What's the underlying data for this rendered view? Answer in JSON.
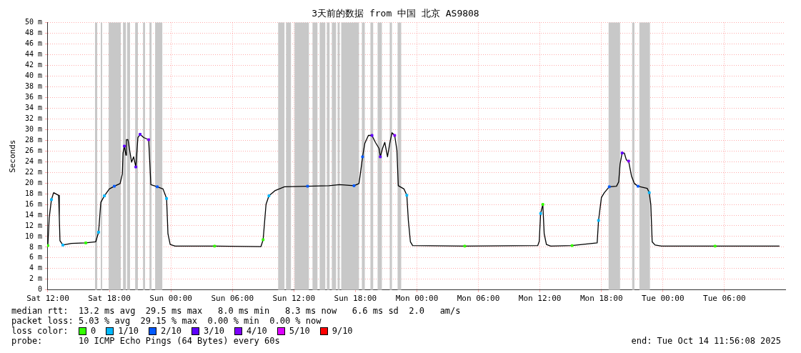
{
  "chart_data": {
    "type": "line",
    "title": "3天前的数据 from 中国 北京 AS9808",
    "ylabel": "Seconds",
    "legend_title": "loss color:",
    "legend": "bottom",
    "grid": true,
    "xlim": [
      "2025-10-11T11:56",
      "2025-10-14T11:56"
    ],
    "xticks": [
      {
        "value": "2025-10-11T12:00",
        "label": "Sat 12:00"
      },
      {
        "value": "2025-10-11T18:00",
        "label": "Sat 18:00"
      },
      {
        "value": "2025-10-12T00:00",
        "label": "Sun 00:00"
      },
      {
        "value": "2025-10-12T06:00",
        "label": "Sun 06:00"
      },
      {
        "value": "2025-10-12T12:00",
        "label": "Sun 12:00"
      },
      {
        "value": "2025-10-12T18:00",
        "label": "Sun 18:00"
      },
      {
        "value": "2025-10-13T00:00",
        "label": "Mon 00:00"
      },
      {
        "value": "2025-10-13T06:00",
        "label": "Mon 06:00"
      },
      {
        "value": "2025-10-13T12:00",
        "label": "Mon 12:00"
      },
      {
        "value": "2025-10-13T18:00",
        "label": "Mon 18:00"
      },
      {
        "value": "2025-10-14T00:00",
        "label": "Tue 00:00"
      },
      {
        "value": "2025-10-14T06:00",
        "label": "Tue 06:00"
      }
    ],
    "ylim": [
      0,
      50
    ],
    "yticks": [
      0,
      {
        "value": 2,
        "label": "2 m"
      },
      {
        "value": 4,
        "label": "4 m"
      },
      {
        "value": 6,
        "label": "6 m"
      },
      {
        "value": 8,
        "label": "8 m"
      },
      {
        "value": 10,
        "label": "10 m"
      },
      {
        "value": 12,
        "label": "12 m"
      },
      {
        "value": 14,
        "label": "14 m"
      },
      {
        "value": 16,
        "label": "16 m"
      },
      {
        "value": 18,
        "label": "18 m"
      },
      {
        "value": 20,
        "label": "20 m"
      },
      {
        "value": 22,
        "label": "22 m"
      },
      {
        "value": 24,
        "label": "24 m"
      },
      {
        "value": 26,
        "label": "26 m"
      },
      {
        "value": 28,
        "label": "28 m"
      },
      {
        "value": 30,
        "label": "30 m"
      },
      {
        "value": 32,
        "label": "32 m"
      },
      {
        "value": 34,
        "label": "34 m"
      },
      {
        "value": 36,
        "label": "36 m"
      },
      {
        "value": 38,
        "label": "38 m"
      },
      {
        "value": 40,
        "label": "40 m"
      },
      {
        "value": 42,
        "label": "42 m"
      },
      {
        "value": 44,
        "label": "44 m"
      },
      {
        "value": 46,
        "label": "46 m"
      },
      {
        "value": 48,
        "label": "48 m"
      },
      {
        "value": 50,
        "label": "50 m"
      }
    ],
    "bands": [
      {
        "axis": "x",
        "from": "2025-10-11T16:36",
        "to": "2025-10-11T16:49",
        "color": "#c8c8c8"
      },
      {
        "axis": "x",
        "from": "2025-10-11T17:10",
        "to": "2025-10-11T17:18",
        "color": "#c8c8c8"
      },
      {
        "axis": "x",
        "from": "2025-10-11T17:56",
        "to": "2025-10-11T19:07",
        "color": "#c8c8c8"
      },
      {
        "axis": "x",
        "from": "2025-10-11T19:20",
        "to": "2025-10-11T19:37",
        "color": "#c8c8c8"
      },
      {
        "axis": "x",
        "from": "2025-10-11T19:44",
        "to": "2025-10-11T20:01",
        "color": "#c8c8c8"
      },
      {
        "axis": "x",
        "from": "2025-10-11T20:31",
        "to": "2025-10-11T20:47",
        "color": "#c8c8c8"
      },
      {
        "axis": "x",
        "from": "2025-10-11T21:17",
        "to": "2025-10-11T21:29",
        "color": "#c8c8c8"
      },
      {
        "axis": "x",
        "from": "2025-10-11T21:55",
        "to": "2025-10-11T22:07",
        "color": "#c8c8c8"
      },
      {
        "axis": "x",
        "from": "2025-10-11T22:28",
        "to": "2025-10-11T23:10",
        "color": "#c8c8c8"
      },
      {
        "axis": "x",
        "from": "2025-10-12T10:28",
        "to": "2025-10-12T11:05",
        "color": "#c8c8c8"
      },
      {
        "axis": "x",
        "from": "2025-10-12T11:14",
        "to": "2025-10-12T11:43",
        "color": "#c8c8c8"
      },
      {
        "axis": "x",
        "from": "2025-10-12T12:04",
        "to": "2025-10-12T13:28",
        "color": "#c8c8c8"
      },
      {
        "axis": "x",
        "from": "2025-10-12T13:49",
        "to": "2025-10-12T14:18",
        "color": "#c8c8c8"
      },
      {
        "axis": "x",
        "from": "2025-10-12T14:31",
        "to": "2025-10-12T15:04",
        "color": "#c8c8c8"
      },
      {
        "axis": "x",
        "from": "2025-10-12T15:13",
        "to": "2025-10-12T15:29",
        "color": "#c8c8c8"
      },
      {
        "axis": "x",
        "from": "2025-10-12T15:42",
        "to": "2025-10-12T16:07",
        "color": "#c8c8c8"
      },
      {
        "axis": "x",
        "from": "2025-10-12T16:16",
        "to": "2025-10-12T16:28",
        "color": "#c8c8c8"
      },
      {
        "axis": "x",
        "from": "2025-10-12T16:37",
        "to": "2025-10-12T18:21",
        "color": "#c8c8c8"
      },
      {
        "axis": "x",
        "from": "2025-10-12T18:38",
        "to": "2025-10-12T18:55",
        "color": "#c8c8c8"
      },
      {
        "axis": "x",
        "from": "2025-10-12T19:28",
        "to": "2025-10-12T19:44",
        "color": "#c8c8c8"
      },
      {
        "axis": "x",
        "from": "2025-10-12T20:10",
        "to": "2025-10-12T20:35",
        "color": "#c8c8c8"
      },
      {
        "axis": "x",
        "from": "2025-10-12T21:21",
        "to": "2025-10-12T21:34",
        "color": "#c8c8c8"
      },
      {
        "axis": "x",
        "from": "2025-10-12T22:07",
        "to": "2025-10-12T22:28",
        "color": "#c8c8c8"
      },
      {
        "axis": "x",
        "from": "2025-10-13T18:42",
        "to": "2025-10-13T19:49",
        "color": "#c8c8c8"
      },
      {
        "axis": "x",
        "from": "2025-10-13T21:00",
        "to": "2025-10-13T21:13",
        "color": "#c8c8c8"
      },
      {
        "axis": "x",
        "from": "2025-10-13T21:42",
        "to": "2025-10-13T22:44",
        "color": "#c8c8c8"
      }
    ],
    "series": [
      {
        "color": "#000000",
        "x": [
          "2025-10-11T12:00",
          "2025-10-11T12:08",
          "2025-10-11T12:21",
          "2025-10-11T12:34",
          "2025-10-11T13:03",
          "2025-10-11T13:07",
          "2025-10-11T13:11",
          "2025-10-11T13:28",
          "2025-10-11T14:18",
          "2025-10-11T15:42",
          "2025-10-11T16:40",
          "2025-10-11T16:57",
          "2025-10-11T17:10",
          "2025-10-11T17:31",
          "2025-10-11T18:00",
          "2025-10-11T18:29",
          "2025-10-11T19:03",
          "2025-10-11T19:16",
          "2025-10-11T19:20",
          "2025-10-11T19:28",
          "2025-10-11T19:37",
          "2025-10-11T19:40",
          "2025-10-11T19:49",
          "2025-10-11T20:10",
          "2025-10-11T20:22",
          "2025-10-11T20:35",
          "2025-10-11T20:47",
          "2025-10-11T21:00",
          "2025-10-11T21:21",
          "2025-10-11T21:50",
          "2025-10-11T22:03",
          "2025-10-11T22:40",
          "2025-10-11T23:14",
          "2025-10-11T23:35",
          "2025-10-11T23:43",
          "2025-10-11T23:56",
          "2025-10-12T00:25",
          "2025-10-12T04:16",
          "2025-10-12T08:47",
          "2025-10-12T09:00",
          "2025-10-12T09:08",
          "2025-10-12T09:17",
          "2025-10-12T09:34",
          "2025-10-12T10:11",
          "2025-10-12T11:05",
          "2025-10-12T13:20",
          "2025-10-12T15:25",
          "2025-10-12T16:28",
          "2025-10-12T17:52",
          "2025-10-12T18:21",
          "2025-10-12T18:29",
          "2025-10-12T18:42",
          "2025-10-12T18:55",
          "2025-10-12T19:16",
          "2025-10-12T19:37",
          "2025-10-12T19:57",
          "2025-10-12T20:18",
          "2025-10-12T20:26",
          "2025-10-12T20:39",
          "2025-10-12T20:52",
          "2025-10-12T21:08",
          "2025-10-12T21:21",
          "2025-10-12T21:34",
          "2025-10-12T21:50",
          "2025-10-12T22:03",
          "2025-10-12T22:11",
          "2025-10-12T22:44",
          "2025-10-12T23:01",
          "2025-10-12T23:10",
          "2025-10-12T23:22",
          "2025-10-12T23:35",
          "2025-10-13T04:40",
          "2025-10-13T11:47",
          "2025-10-13T11:56",
          "2025-10-13T12:04",
          "2025-10-13T12:17",
          "2025-10-13T12:25",
          "2025-10-13T12:38",
          "2025-10-13T13:03",
          "2025-10-13T15:08",
          "2025-10-13T17:35",
          "2025-10-13T17:43",
          "2025-10-13T18:00",
          "2025-10-13T18:17",
          "2025-10-13T18:46",
          "2025-10-13T19:28",
          "2025-10-13T19:41",
          "2025-10-13T19:49",
          "2025-10-13T20:01",
          "2025-10-13T20:14",
          "2025-10-13T20:26",
          "2025-10-13T20:39",
          "2025-10-13T20:56",
          "2025-10-13T21:13",
          "2025-10-13T21:34",
          "2025-10-13T22:28",
          "2025-10-13T22:40",
          "2025-10-13T22:49",
          "2025-10-13T22:57",
          "2025-10-13T23:14",
          "2025-10-13T23:52",
          "2025-10-14T05:05",
          "2025-10-14T11:22"
        ],
        "values": [
          8.3,
          13.5,
          16.9,
          18.2,
          17.7,
          13.6,
          9.2,
          8.4,
          8.7,
          8.8,
          9.0,
          10.8,
          16.4,
          17.6,
          18.9,
          19.4,
          19.9,
          21.7,
          25.6,
          26.9,
          25.2,
          28.1,
          28.1,
          23.9,
          24.9,
          23.0,
          28.5,
          29.1,
          28.5,
          28.1,
          19.7,
          19.3,
          18.9,
          17.1,
          10.5,
          8.5,
          8.2,
          8.2,
          8.1,
          9.4,
          12.5,
          16.0,
          17.6,
          18.6,
          19.3,
          19.4,
          19.5,
          19.7,
          19.5,
          19.9,
          21.7,
          24.9,
          27.4,
          28.9,
          28.9,
          27.6,
          26.5,
          24.9,
          26.5,
          27.6,
          24.9,
          27.4,
          29.4,
          28.9,
          26.1,
          19.5,
          18.9,
          17.7,
          13.0,
          9.0,
          8.3,
          8.2,
          8.3,
          9.1,
          14.3,
          16.0,
          10.5,
          8.5,
          8.2,
          8.3,
          8.8,
          13.0,
          17.3,
          18.2,
          19.3,
          19.4,
          20.2,
          23.5,
          25.6,
          25.6,
          24.3,
          24.1,
          21.3,
          19.9,
          19.4,
          19.0,
          18.2,
          16.0,
          9.0,
          8.4,
          8.2,
          8.2,
          8.2
        ]
      },
      {
        "type": "scatter",
        "name": "0",
        "color": "#33ff00",
        "marker": "square",
        "x": [
          "2025-10-11T12:00",
          "2025-10-11T15:42",
          "2025-10-12T04:16",
          "2025-10-12T09:00",
          "2025-10-13T04:40",
          "2025-10-13T12:17",
          "2025-10-13T15:08",
          "2025-10-14T05:05"
        ],
        "values": [
          8.3,
          8.8,
          8.2,
          9.4,
          8.2,
          16.0,
          8.3,
          8.2
        ]
      },
      {
        "type": "scatter",
        "name": "1/10",
        "color": "#00b8ff",
        "marker": "square",
        "x": [
          "2025-10-11T12:21",
          "2025-10-11T13:28",
          "2025-10-11T16:57",
          "2025-10-11T17:31",
          "2025-10-11T23:35",
          "2025-10-12T09:34",
          "2025-10-12T23:01",
          "2025-10-13T12:04",
          "2025-10-13T17:43",
          "2025-10-13T22:40"
        ],
        "values": [
          16.9,
          8.4,
          10.8,
          17.6,
          17.1,
          17.6,
          17.7,
          14.3,
          13.0,
          18.2
        ]
      },
      {
        "type": "scatter",
        "name": "2/10",
        "color": "#0059ff",
        "marker": "square",
        "x": [
          "2025-10-11T18:29",
          "2025-10-11T22:40",
          "2025-10-12T13:20",
          "2025-10-12T17:52",
          "2025-10-12T18:42",
          "2025-10-13T18:46",
          "2025-10-13T21:34"
        ],
        "values": [
          19.4,
          19.3,
          19.4,
          19.5,
          24.9,
          19.3,
          19.4
        ]
      },
      {
        "type": "scatter",
        "name": "3/10",
        "color": "#5e00ff",
        "marker": "square",
        "x": [
          "2025-10-11T19:28",
          "2025-10-11T20:35",
          "2025-10-11T21:00",
          "2025-10-12T19:37",
          "2025-10-12T20:26",
          "2025-10-13T20:01"
        ],
        "values": [
          26.9,
          23.0,
          29.1,
          28.9,
          24.9,
          25.6
        ]
      },
      {
        "type": "scatter",
        "name": "4/10",
        "color": "#7e00ff",
        "marker": "square",
        "x": [
          "2025-10-11T21:50",
          "2025-10-12T21:50",
          "2025-10-13T20:39"
        ],
        "values": [
          28.1,
          28.9,
          24.1
        ]
      },
      {
        "type": "scatter",
        "name": "5/10",
        "color": "#dd00ff",
        "marker": "square"
      },
      {
        "type": "scatter",
        "name": "9/10",
        "color": "#ff0000",
        "marker": "square"
      }
    ],
    "annotations": [
      "median rtt:  13.2 ms avg  29.5 ms max   8.0 ms min   8.3 ms now   6.6 ms sd  2.0   am/s",
      "packet loss: 5.03 % avg  29.15 % max  0.00 % min  0.00 % now",
      "probe:       10 ICMP Echo Pings (64 Bytes) every 60s",
      "end: Tue Oct 14 11:56:08 2025"
    ]
  }
}
